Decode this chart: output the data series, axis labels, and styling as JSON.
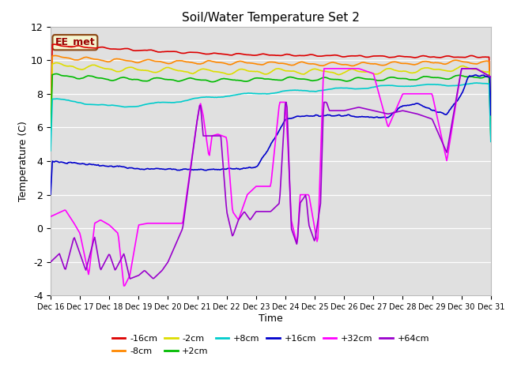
{
  "title": "Soil/Water Temperature Set 2",
  "xlabel": "Time",
  "ylabel": "Temperature (C)",
  "ylim": [
    -4,
    12
  ],
  "xlim": [
    0,
    15
  ],
  "background_color": "#e8e8e8",
  "plot_bg_color": "#e0e0e0",
  "annotation_text": "EE_met",
  "annotation_box_facecolor": "#f5f5d0",
  "annotation_box_edgecolor": "#8b4513",
  "series": {
    "-16cm": {
      "color": "#dd0000",
      "lw": 1.2
    },
    "-8cm": {
      "color": "#ff8800",
      "lw": 1.2
    },
    "-2cm": {
      "color": "#dddd00",
      "lw": 1.2
    },
    "+2cm": {
      "color": "#00bb00",
      "lw": 1.2
    },
    "+8cm": {
      "color": "#00cccc",
      "lw": 1.2
    },
    "+16cm": {
      "color": "#0000cc",
      "lw": 1.2
    },
    "+32cm": {
      "color": "#ff00ff",
      "lw": 1.2
    },
    "+64cm": {
      "color": "#9900cc",
      "lw": 1.2
    }
  },
  "x_tick_labels": [
    "Dec 16",
    "Dec 17",
    "Dec 18",
    "Dec 19",
    "Dec 20",
    "Dec 21",
    "Dec 22",
    "Dec 23",
    "Dec 24",
    "Dec 25",
    "Dec 26",
    "Dec 27",
    "Dec 28",
    "Dec 29",
    "Dec 30",
    "Dec 31"
  ],
  "legend_order": [
    "-16cm",
    "-8cm",
    "-2cm",
    "+2cm",
    "+8cm",
    "+16cm",
    "+32cm",
    "+64cm"
  ],
  "figsize": [
    6.4,
    4.8
  ],
  "dpi": 100
}
